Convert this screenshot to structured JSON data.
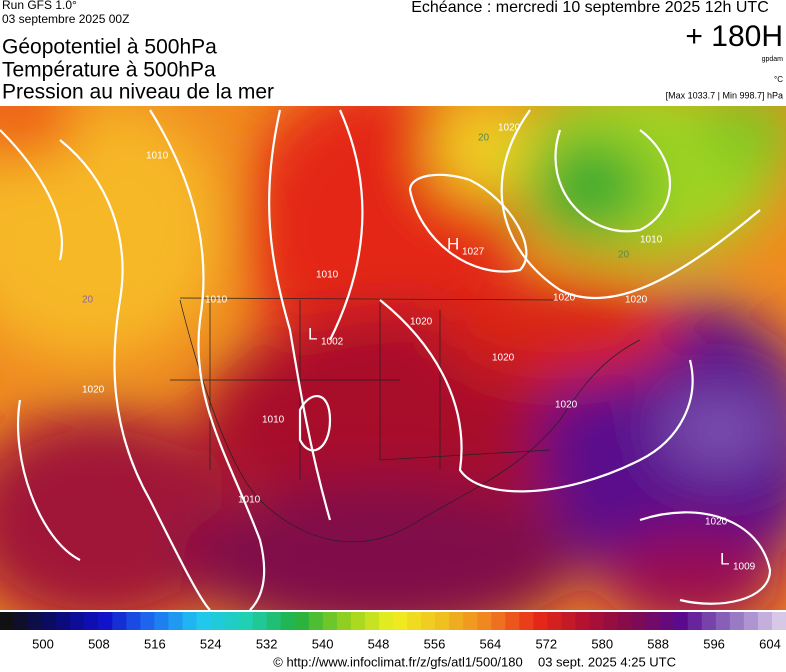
{
  "header": {
    "run": "Run GFS 1.0°",
    "run_date": "03 septembre 2025 00Z",
    "title_lines": [
      "Géopotentiel à 500hPa",
      "Température à 500hPa",
      "Pression au niveau de la mer"
    ],
    "valid": "Echéance : mercredi 10 septembre 2025 12h UTC",
    "lead": "+ 180H",
    "unit_geo": "gpdam",
    "unit_temp": "°C",
    "pressure_range": "[Max 1033.7 | Min 998.7] hPa"
  },
  "map": {
    "centers": [
      {
        "kind": "H",
        "value": "1027"
      },
      {
        "kind": "L",
        "value": "1002"
      },
      {
        "kind": "L",
        "value": "1009"
      }
    ],
    "isobar_labels": [
      "1010",
      "1010",
      "1010",
      "1020",
      "1020",
      "1020",
      "1020",
      "1020",
      "1020",
      "1010",
      "1020",
      "1010",
      "1010",
      "1020"
    ],
    "height_labels": [
      "20",
      "20",
      "20"
    ]
  },
  "colorbar": {
    "labels": [
      "500",
      "508",
      "516",
      "524",
      "532",
      "540",
      "548",
      "556",
      "564",
      "572",
      "580",
      "588",
      "596",
      "604"
    ],
    "stops": [
      "#111111",
      "#0a0a6e",
      "#1010c8",
      "#1e6ef0",
      "#20c8f0",
      "#20d0b0",
      "#20b040",
      "#90d020",
      "#f0f020",
      "#f0c020",
      "#f08020",
      "#e82818",
      "#b01030",
      "#800a50",
      "#5a0a90",
      "#9070c0",
      "#d8c8e8"
    ]
  },
  "footer": {
    "source": "© http://www.infoclimat.fr/z/gfs/atl1/500/180",
    "generated": "03 sept. 2025  4:25 UTC"
  }
}
